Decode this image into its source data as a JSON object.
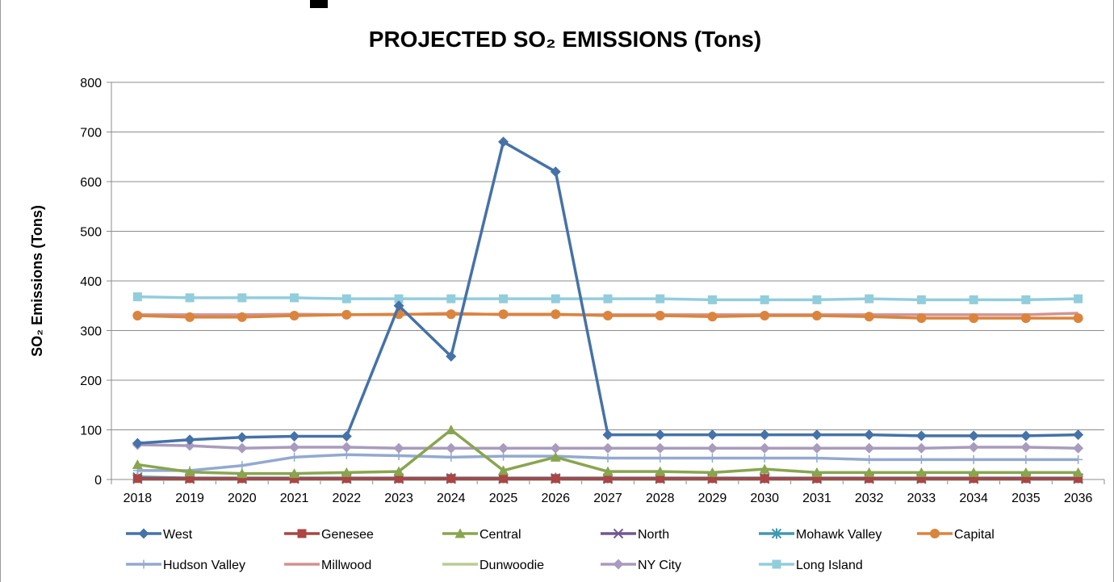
{
  "chart_data": {
    "type": "line",
    "title": "PROJECTED SO₂ EMISSIONS (Tons)",
    "ylabel": "SO₂ Emissions (Tons)",
    "xlabel": "",
    "ylim": [
      0,
      800
    ],
    "yticks": [
      0,
      100,
      200,
      300,
      400,
      500,
      600,
      700,
      800
    ],
    "grid": "horizontal",
    "legend_position": "bottom",
    "categories": [
      "2018",
      "2019",
      "2020",
      "2021",
      "2022",
      "2023",
      "2024",
      "2025",
      "2026",
      "2027",
      "2028",
      "2029",
      "2030",
      "2031",
      "2032",
      "2033",
      "2034",
      "2035",
      "2036"
    ],
    "series": [
      {
        "name": "West",
        "color": "#4572A7",
        "marker": "diamond",
        "values": [
          73,
          80,
          85,
          87,
          87,
          350,
          248,
          680,
          620,
          90,
          90,
          90,
          90,
          90,
          90,
          88,
          88,
          88,
          90
        ]
      },
      {
        "name": "Genesee",
        "color": "#AA4643",
        "marker": "square",
        "values": [
          2,
          2,
          2,
          2,
          2,
          2,
          2,
          2,
          2,
          2,
          2,
          2,
          2,
          2,
          2,
          2,
          2,
          2,
          2
        ]
      },
      {
        "name": "Central",
        "color": "#89A54E",
        "marker": "triangle",
        "values": [
          30,
          15,
          12,
          12,
          14,
          16,
          100,
          18,
          45,
          16,
          16,
          14,
          21,
          14,
          14,
          14,
          14,
          14,
          14
        ]
      },
      {
        "name": "North",
        "color": "#71588F",
        "marker": "x",
        "values": [
          1,
          1,
          1,
          1,
          1,
          1,
          1,
          1,
          1,
          1,
          1,
          1,
          1,
          1,
          1,
          1,
          1,
          1,
          1
        ]
      },
      {
        "name": "Mohawk Valley",
        "color": "#4198AF",
        "marker": "star",
        "values": [
          5,
          3,
          3,
          3,
          3,
          3,
          3,
          3,
          3,
          3,
          3,
          3,
          3,
          3,
          3,
          3,
          3,
          3,
          3
        ]
      },
      {
        "name": "Capital",
        "color": "#DB843D",
        "marker": "circle",
        "values": [
          330,
          327,
          327,
          330,
          332,
          333,
          333,
          333,
          333,
          330,
          330,
          328,
          330,
          330,
          328,
          325,
          325,
          325,
          325
        ]
      },
      {
        "name": "Hudson Valley",
        "color": "#93A9CF",
        "marker": "plus",
        "values": [
          18,
          18,
          28,
          45,
          50,
          48,
          45,
          47,
          47,
          43,
          43,
          43,
          43,
          43,
          40,
          40,
          40,
          40,
          40
        ]
      },
      {
        "name": "Millwood",
        "color": "#D19392",
        "marker": "none",
        "values": [
          332,
          332,
          332,
          333,
          332,
          332,
          335,
          332,
          332,
          332,
          332,
          332,
          332,
          332,
          332,
          332,
          332,
          332,
          335
        ]
      },
      {
        "name": "Dunwoodie",
        "color": "#B9CD96",
        "marker": "none",
        "values": [
          0,
          0,
          0,
          0,
          0,
          0,
          0,
          0,
          0,
          0,
          0,
          0,
          0,
          0,
          0,
          0,
          0,
          0,
          0
        ]
      },
      {
        "name": "NY City",
        "color": "#A99BBD",
        "marker": "diamond",
        "values": [
          70,
          68,
          63,
          65,
          65,
          63,
          63,
          63,
          63,
          63,
          63,
          63,
          63,
          63,
          63,
          63,
          65,
          65,
          63
        ]
      },
      {
        "name": "Long Island",
        "color": "#92CDDC",
        "marker": "square",
        "values": [
          368,
          366,
          366,
          366,
          364,
          364,
          364,
          364,
          364,
          364,
          364,
          362,
          362,
          362,
          364,
          362,
          362,
          362,
          364
        ]
      }
    ]
  }
}
